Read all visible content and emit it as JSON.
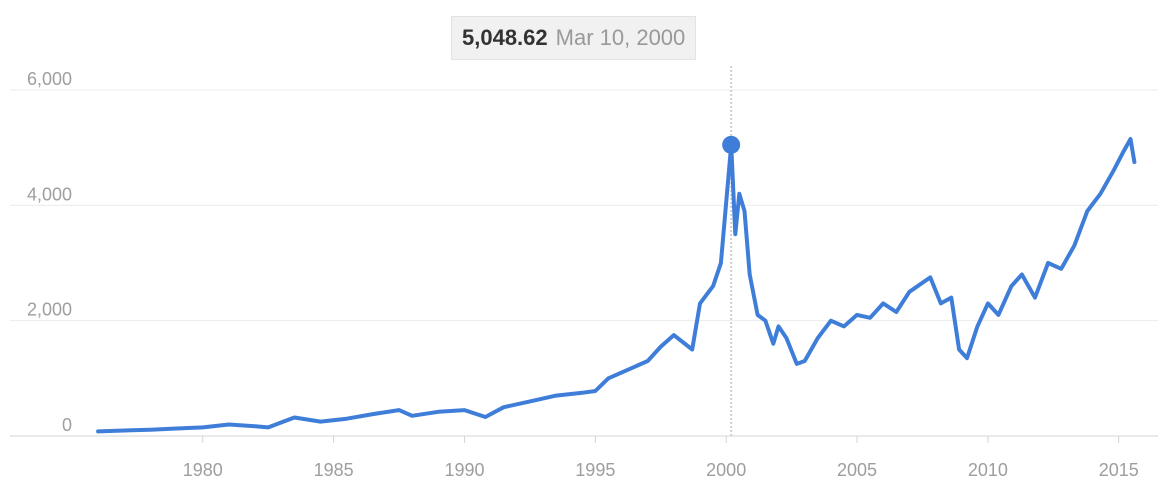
{
  "tooltip": {
    "value": "5,048.62",
    "date": "Mar 10, 2000"
  },
  "chart_data": {
    "type": "line",
    "title": "",
    "xlabel": "",
    "ylabel": "",
    "xlim": [
      1975.5,
      2016.5
    ],
    "ylim": [
      0,
      6000
    ],
    "grid": true,
    "color": "#3f7ed8",
    "yticks": [
      {
        "value": 0,
        "label": "0"
      },
      {
        "value": 2000,
        "label": "2,000"
      },
      {
        "value": 4000,
        "label": "4,000"
      },
      {
        "value": 6000,
        "label": "6,000"
      }
    ],
    "xticks": [
      {
        "value": 1980,
        "label": "1980"
      },
      {
        "value": 1985,
        "label": "1985"
      },
      {
        "value": 1990,
        "label": "1990"
      },
      {
        "value": 1995,
        "label": "1995"
      },
      {
        "value": 2000,
        "label": "2000"
      },
      {
        "value": 2005,
        "label": "2005"
      },
      {
        "value": 2010,
        "label": "2010"
      },
      {
        "value": 2015,
        "label": "2015"
      }
    ],
    "highlight": {
      "x": 2000.19,
      "y": 5048.62
    },
    "series": [
      {
        "points": [
          [
            1976.0,
            80
          ],
          [
            1977.0,
            95
          ],
          [
            1978.0,
            110
          ],
          [
            1979.0,
            130
          ],
          [
            1980.0,
            150
          ],
          [
            1981.0,
            200
          ],
          [
            1982.0,
            170
          ],
          [
            1982.5,
            150
          ],
          [
            1983.5,
            320
          ],
          [
            1984.5,
            250
          ],
          [
            1985.5,
            300
          ],
          [
            1986.5,
            380
          ],
          [
            1987.5,
            450
          ],
          [
            1988.0,
            350
          ],
          [
            1989.0,
            420
          ],
          [
            1990.0,
            450
          ],
          [
            1990.8,
            330
          ],
          [
            1991.5,
            500
          ],
          [
            1992.5,
            600
          ],
          [
            1993.5,
            700
          ],
          [
            1994.5,
            750
          ],
          [
            1995.0,
            780
          ],
          [
            1995.5,
            1000
          ],
          [
            1996.0,
            1100
          ],
          [
            1996.5,
            1200
          ],
          [
            1997.0,
            1300
          ],
          [
            1997.5,
            1550
          ],
          [
            1998.0,
            1750
          ],
          [
            1998.7,
            1500
          ],
          [
            1999.0,
            2300
          ],
          [
            1999.5,
            2600
          ],
          [
            1999.8,
            3000
          ],
          [
            2000.19,
            5048.62
          ],
          [
            2000.35,
            3500
          ],
          [
            2000.5,
            4200
          ],
          [
            2000.7,
            3900
          ],
          [
            2000.9,
            2800
          ],
          [
            2001.2,
            2100
          ],
          [
            2001.5,
            2000
          ],
          [
            2001.8,
            1600
          ],
          [
            2002.0,
            1900
          ],
          [
            2002.3,
            1700
          ],
          [
            2002.7,
            1250
          ],
          [
            2003.0,
            1300
          ],
          [
            2003.5,
            1700
          ],
          [
            2004.0,
            2000
          ],
          [
            2004.5,
            1900
          ],
          [
            2005.0,
            2100
          ],
          [
            2005.5,
            2050
          ],
          [
            2006.0,
            2300
          ],
          [
            2006.5,
            2150
          ],
          [
            2007.0,
            2500
          ],
          [
            2007.8,
            2750
          ],
          [
            2008.2,
            2300
          ],
          [
            2008.6,
            2400
          ],
          [
            2008.9,
            1500
          ],
          [
            2009.2,
            1350
          ],
          [
            2009.6,
            1900
          ],
          [
            2010.0,
            2300
          ],
          [
            2010.4,
            2100
          ],
          [
            2010.9,
            2600
          ],
          [
            2011.3,
            2800
          ],
          [
            2011.8,
            2400
          ],
          [
            2012.3,
            3000
          ],
          [
            2012.8,
            2900
          ],
          [
            2013.3,
            3300
          ],
          [
            2013.8,
            3900
          ],
          [
            2014.3,
            4200
          ],
          [
            2014.8,
            4600
          ],
          [
            2015.2,
            4950
          ],
          [
            2015.45,
            5150
          ],
          [
            2015.6,
            4750
          ]
        ]
      }
    ]
  }
}
